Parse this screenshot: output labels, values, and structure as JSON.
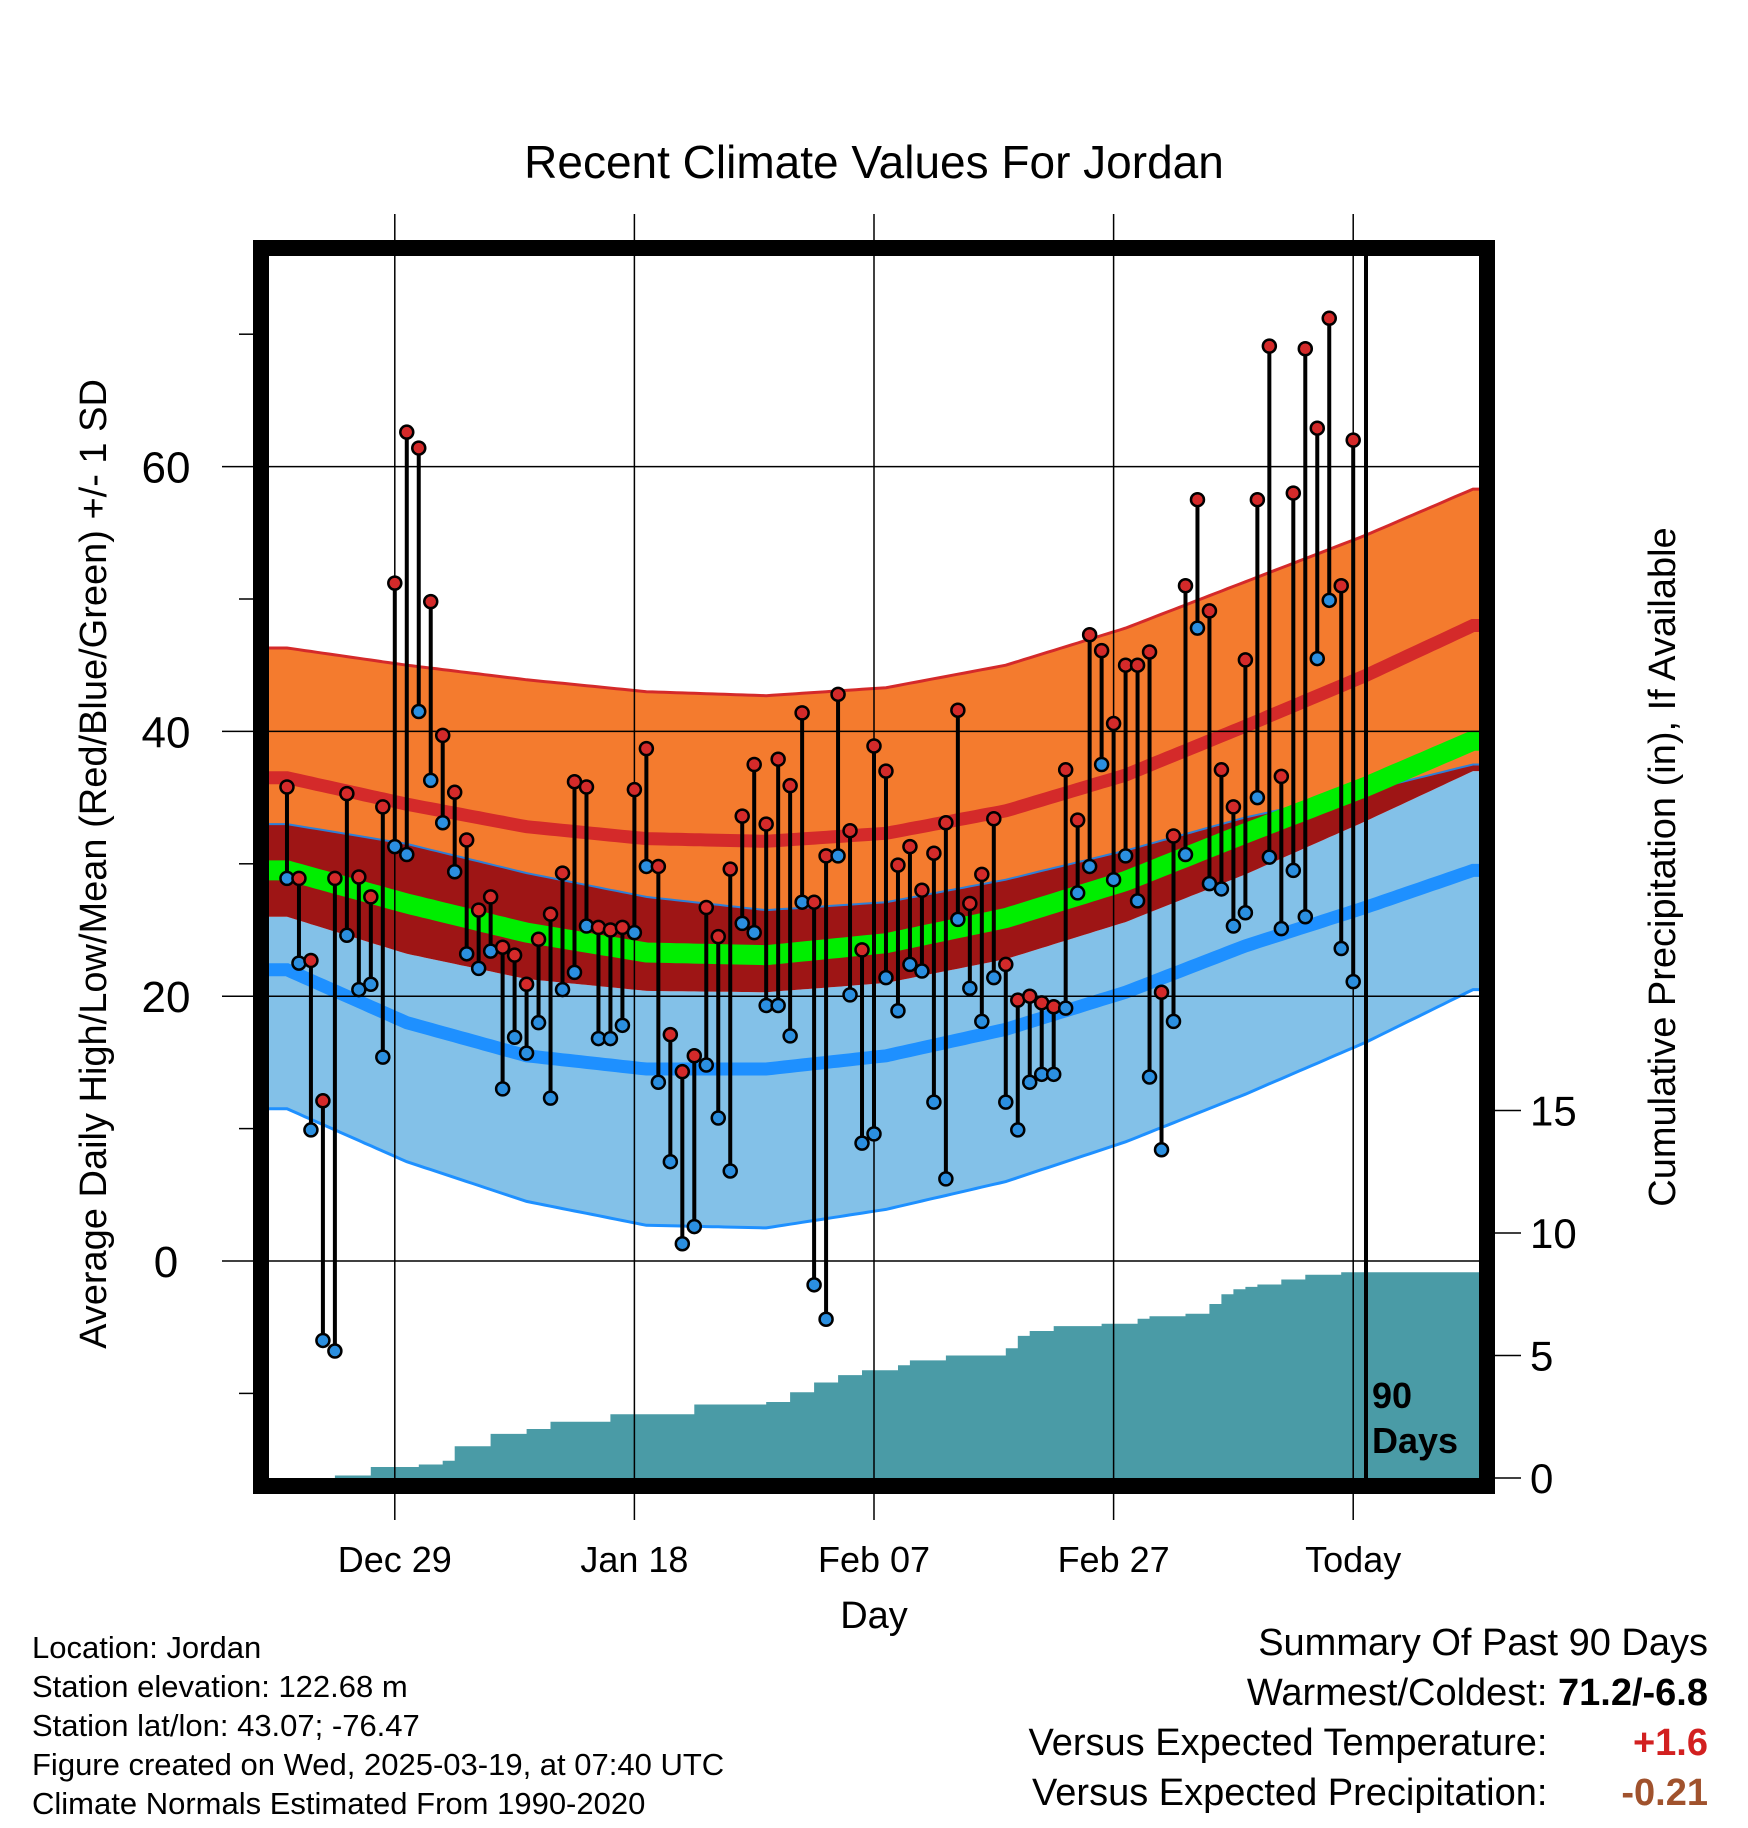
{
  "colors": {
    "orange_band": "#f47b2e",
    "red_line": "#d42a2a",
    "dark_red_band": "#9e1515",
    "green_mean": "#00ee00",
    "light_blue_band": "#83c1e8",
    "blue_line": "#1e90ff",
    "precip_fill": "#4a9ba6",
    "warm_dot": "#d42a2a",
    "cold_dot": "#2b8fe0",
    "positive_value": "#d22020",
    "negative_precip": "#a0522d"
  },
  "chart_data": {
    "type": "line",
    "title": "Recent Climate Values For Jordan",
    "xlabel": "Day",
    "ylabel_left": "Average Daily High/Low/Mean (Red/Blue/Green) +/- 1 SD",
    "ylabel_right": "Cumulative Precipitation (in), If Available",
    "ylim_left": [
      -16,
      75
    ],
    "ylim_right": [
      0,
      75
    ],
    "left_ticks": [
      "0",
      "20",
      "40",
      "60"
    ],
    "right_ticks": [
      "0",
      "5",
      "10",
      "15"
    ],
    "x_ticks": [
      "Dec 29",
      "Jan 18",
      "Feb 07",
      "Feb 27",
      "Today"
    ],
    "days_marker_label": [
      "90",
      "Days"
    ],
    "grid": true,
    "normals": {
      "x_days": [
        -90,
        -80,
        -70,
        -60,
        -50,
        -40,
        -30,
        -20,
        -10,
        0,
        9
      ],
      "high_plus_sd": [
        46.3,
        45.0,
        43.9,
        43.0,
        42.7,
        43.3,
        45.0,
        47.8,
        51.3,
        54.8,
        58.3
      ],
      "high": [
        36.5,
        34.5,
        32.8,
        31.9,
        31.7,
        32.3,
        34.0,
        36.7,
        40.4,
        44.2,
        48.0
      ],
      "high_minus_sd": [
        33.0,
        31.5,
        29.3,
        27.5,
        26.5,
        27.1,
        28.8,
        31.0,
        33.5,
        35.5,
        37.5
      ],
      "mean": [
        29.5,
        27.0,
        24.8,
        23.3,
        23.1,
        24.0,
        25.9,
        28.7,
        32.3,
        35.8,
        39.3
      ],
      "low_plus_sd": [
        26.0,
        23.2,
        21.3,
        20.4,
        20.3,
        21.0,
        22.8,
        25.6,
        29.2,
        33.2,
        37.0
      ],
      "low": [
        22.0,
        18.0,
        15.5,
        14.5,
        14.5,
        15.5,
        17.5,
        20.3,
        23.8,
        26.7,
        29.5
      ],
      "low_minus_sd": [
        11.5,
        7.5,
        4.5,
        2.7,
        2.5,
        3.9,
        6.0,
        9.0,
        12.6,
        16.5,
        20.5
      ]
    },
    "daily": {
      "x_days": [
        -90,
        -89,
        -88,
        -87,
        -86,
        -85,
        -84,
        -83,
        -82,
        -81,
        -80,
        -79,
        -78,
        -77,
        -76,
        -75,
        -74,
        -73,
        -72,
        -71,
        -70,
        -69,
        -68,
        -67,
        -66,
        -65,
        -64,
        -63,
        -62,
        -61,
        -60,
        -59,
        -58,
        -57,
        -56,
        -55,
        -54,
        -53,
        -52,
        -51,
        -50,
        -49,
        -48,
        -47,
        -46,
        -45,
        -44,
        -43,
        -42,
        -41,
        -40,
        -39,
        -38,
        -37,
        -36,
        -35,
        -34,
        -33,
        -32,
        -31,
        -30,
        -29,
        -28,
        -27,
        -26,
        -25,
        -24,
        -23,
        -22,
        -21,
        -20,
        -19,
        -18,
        -17,
        -16,
        -15,
        -14,
        -13,
        -12,
        -11,
        -10,
        -9,
        -8,
        -7,
        -6,
        -5,
        -4,
        -3,
        -2,
        -1
      ],
      "high": [
        35.8,
        28.9,
        22.7,
        12.1,
        28.9,
        35.3,
        29.0,
        27.5,
        34.3,
        51.2,
        62.6,
        61.4,
        49.8,
        39.7,
        35.4,
        31.8,
        26.5,
        27.5,
        23.7,
        23.1,
        20.9,
        24.3,
        26.2,
        29.3,
        36.2,
        35.8,
        25.2,
        25.0,
        25.2,
        35.6,
        38.7,
        29.8,
        17.1,
        14.3,
        15.5,
        26.7,
        24.5,
        29.6,
        33.6,
        37.5,
        33.0,
        37.9,
        35.9,
        41.4,
        27.1,
        30.6,
        42.8,
        32.5,
        23.5,
        38.9,
        37.0,
        29.9,
        31.3,
        28.0,
        30.8,
        33.1,
        41.6,
        27.0,
        29.2,
        33.4,
        22.4,
        19.7,
        20.0,
        19.5,
        19.2,
        37.1,
        33.3,
        47.3,
        46.1,
        40.6,
        45.0,
        45.0,
        46.0,
        20.3,
        32.1,
        51.0,
        57.5,
        49.1,
        37.1,
        34.3,
        45.4,
        57.5,
        69.1,
        36.6,
        58.0,
        68.9,
        62.9,
        71.2,
        51.0,
        62.0
      ],
      "low": [
        28.9,
        22.5,
        9.9,
        -6.0,
        -6.8,
        24.6,
        20.5,
        20.9,
        15.4,
        31.3,
        30.7,
        41.5,
        36.3,
        33.1,
        29.4,
        23.2,
        22.1,
        23.4,
        13.0,
        16.9,
        15.7,
        18.0,
        12.3,
        20.5,
        21.8,
        25.3,
        16.8,
        16.8,
        17.8,
        24.8,
        29.8,
        13.5,
        7.5,
        1.3,
        2.6,
        14.8,
        10.8,
        6.8,
        25.5,
        24.8,
        19.3,
        19.3,
        17.0,
        27.1,
        -1.8,
        -4.4,
        30.6,
        20.1,
        8.9,
        9.6,
        21.4,
        18.9,
        22.4,
        21.9,
        12.0,
        6.2,
        25.8,
        20.6,
        18.1,
        21.4,
        12.0,
        9.9,
        13.5,
        14.1,
        14.1,
        19.1,
        27.8,
        29.8,
        37.5,
        28.8,
        30.6,
        27.2,
        13.9,
        8.4,
        18.1,
        30.7,
        47.8,
        28.5,
        28.1,
        25.3,
        26.3,
        35.0,
        30.5,
        25.1,
        29.5,
        26.0,
        45.5,
        49.9,
        23.6,
        21.1
      ]
    },
    "precip": {
      "x_days": [
        -90,
        -86,
        -83,
        -79,
        -77,
        -76,
        -73,
        -71,
        -70,
        -68,
        -63,
        -56,
        -50,
        -48,
        -46,
        -44,
        -42,
        -39,
        -38,
        -35,
        -32,
        -30,
        -29,
        -28,
        -26,
        -22,
        -19,
        -18,
        -15,
        -13,
        -12,
        -11,
        -10,
        -9,
        -7,
        -5,
        -4,
        -2,
        9
      ],
      "cumulative": [
        0.0,
        0.1,
        0.45,
        0.55,
        0.7,
        1.3,
        1.8,
        1.8,
        2.0,
        2.3,
        2.6,
        3.0,
        3.1,
        3.5,
        3.9,
        4.2,
        4.4,
        4.6,
        4.8,
        5.0,
        5.0,
        5.3,
        5.8,
        6.0,
        6.2,
        6.3,
        6.5,
        6.6,
        6.7,
        7.1,
        7.5,
        7.7,
        7.8,
        7.9,
        8.1,
        8.3,
        8.3,
        8.4,
        8.4
      ]
    },
    "summary": {
      "title": "Summary Of Past 90 Days",
      "warmest_coldest_label": "Warmest/Coldest:",
      "warmest_coldest_value": "71.2/-6.8",
      "temp_label": "Versus Expected Temperature:",
      "temp_value": "+1.6",
      "precip_label": "Versus Expected Precipitation:",
      "precip_value": "-0.21"
    }
  },
  "info": {
    "location": "Location: Jordan",
    "elevation": "Station elevation: 122.68 m",
    "latlon": "Station lat/lon: 43.07; -76.47",
    "created": "Figure created on Wed, 2025-03-19, at 07:40 UTC",
    "normals_note": "Climate Normals Estimated From 1990-2020"
  }
}
